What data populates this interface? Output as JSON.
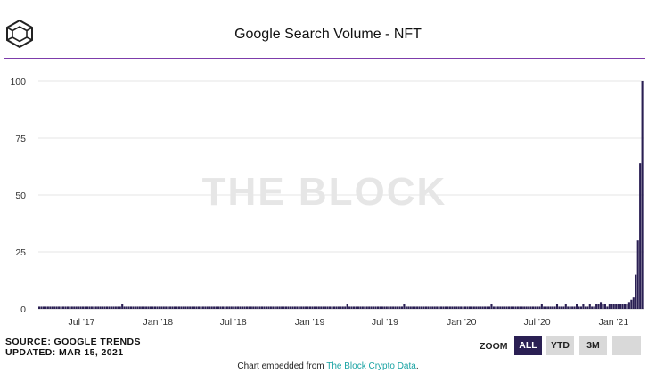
{
  "title": "Google Search Volume - NFT",
  "logo": {
    "icon": "cube-logo-icon"
  },
  "watermark": "THE BLOCK",
  "source": {
    "line1": "SOURCE: GOOGLE TRENDS",
    "line2": "UPDATED: MAR 15, 2021"
  },
  "zoom": {
    "label": "ZOOM",
    "buttons": [
      {
        "label": "ALL",
        "active": true
      },
      {
        "label": "YTD",
        "active": false
      },
      {
        "label": "3M",
        "active": false
      },
      {
        "label": "",
        "active": false
      }
    ]
  },
  "footer": {
    "prefix": "Chart embedded from ",
    "link": "The Block Crypto Data",
    "suffix": "."
  },
  "colors": {
    "bar": "#2a1f53",
    "accent_rule": "#7d3cab",
    "grid": "#e6e6e6",
    "link": "#1aa3a3"
  },
  "chart_data": {
    "type": "bar",
    "title": "Google Search Volume - NFT",
    "xlabel": "",
    "ylabel": "",
    "ylim": [
      0,
      100
    ],
    "yticks": [
      0,
      25,
      50,
      75,
      100
    ],
    "grid": true,
    "legend": "none",
    "xrange": [
      "2017-03-19",
      "2021-03-14"
    ],
    "xticks": [
      {
        "label": "Jul '17",
        "date": "2017-07-01"
      },
      {
        "label": "Jan '18",
        "date": "2018-01-01"
      },
      {
        "label": "Jul '18",
        "date": "2018-07-01"
      },
      {
        "label": "Jan '19",
        "date": "2019-01-01"
      },
      {
        "label": "Jul '19",
        "date": "2019-07-01"
      },
      {
        "label": "Jan '20",
        "date": "2020-01-01"
      },
      {
        "label": "Jul '20",
        "date": "2020-07-01"
      },
      {
        "label": "Jan '21",
        "date": "2021-01-01"
      }
    ],
    "series": [
      {
        "values": [
          1,
          1,
          1,
          1,
          1,
          1,
          1,
          1,
          1,
          1,
          1,
          1,
          1,
          1,
          1,
          1,
          1,
          1,
          1,
          1,
          1,
          1,
          1,
          1,
          1,
          1,
          1,
          1,
          1,
          1,
          1,
          1,
          1,
          1,
          1,
          1,
          1,
          1,
          2,
          1,
          1,
          1,
          1,
          1,
          1,
          1,
          1,
          1,
          1,
          1,
          1,
          1,
          1,
          1,
          1,
          1,
          1,
          1,
          1,
          1,
          1,
          1,
          1,
          1,
          1,
          1,
          1,
          1,
          1,
          1,
          1,
          1,
          1,
          1,
          1,
          1,
          1,
          1,
          1,
          1,
          1,
          1,
          1,
          1,
          1,
          1,
          1,
          1,
          1,
          1,
          1,
          1,
          1,
          1,
          1,
          1,
          1,
          1,
          1,
          1,
          1,
          1,
          1,
          1,
          1,
          1,
          1,
          1,
          1,
          1,
          1,
          1,
          1,
          1,
          1,
          1,
          1,
          1,
          1,
          1,
          1,
          1,
          1,
          1,
          1,
          1,
          1,
          1,
          1,
          1,
          1,
          1,
          1,
          1,
          1,
          1,
          1,
          1,
          1,
          1,
          1,
          2,
          1,
          1,
          1,
          1,
          1,
          1,
          1,
          1,
          1,
          1,
          1,
          1,
          1,
          1,
          1,
          1,
          1,
          1,
          1,
          1,
          1,
          1,
          1,
          1,
          1,
          2,
          1,
          1,
          1,
          1,
          1,
          1,
          1,
          1,
          1,
          1,
          1,
          1,
          1,
          1,
          1,
          1,
          1,
          1,
          1,
          1,
          1,
          1,
          1,
          1,
          1,
          1,
          1,
          1,
          1,
          1,
          1,
          1,
          1,
          1,
          1,
          1,
          1,
          1,
          1,
          2,
          1,
          1,
          1,
          1,
          1,
          1,
          1,
          1,
          1,
          1,
          1,
          1,
          1,
          1,
          1,
          1,
          1,
          1,
          1,
          1,
          1,
          1,
          2,
          1,
          1,
          1,
          1,
          1,
          1,
          2,
          1,
          1,
          1,
          2,
          1,
          1,
          1,
          1,
          2,
          1,
          1,
          2,
          1,
          1,
          2,
          1,
          1,
          2,
          2,
          3,
          2,
          2,
          1,
          2,
          2,
          2,
          2,
          2,
          2,
          2,
          2,
          2,
          3,
          4,
          5,
          15,
          30,
          64,
          100
        ]
      }
    ]
  }
}
